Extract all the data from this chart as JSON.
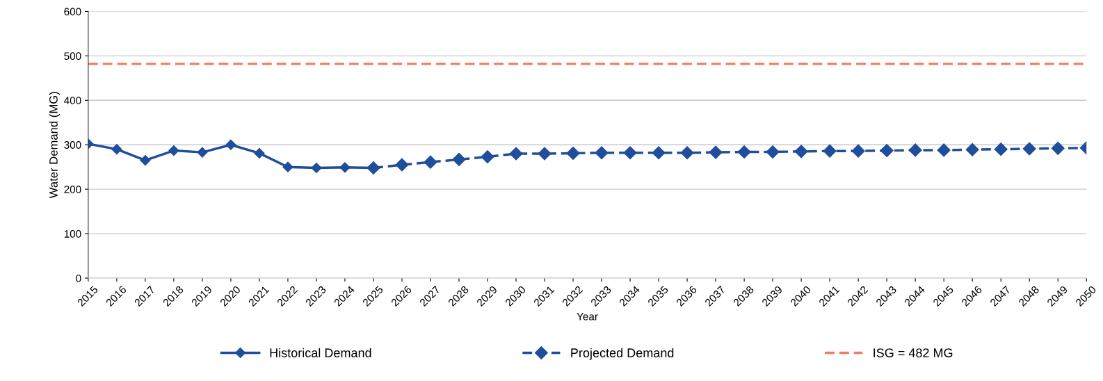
{
  "chart_data": {
    "type": "line",
    "xlabel": "Year",
    "ylabel": "Water Demand (MG)",
    "categories": [
      "2015",
      "2016",
      "2017",
      "2018",
      "2019",
      "2020",
      "2021",
      "2022",
      "2023",
      "2024",
      "2025",
      "2026",
      "2027",
      "2028",
      "2029",
      "2030",
      "2031",
      "2032",
      "2033",
      "2034",
      "2035",
      "2036",
      "2037",
      "2038",
      "2039",
      "2040",
      "2041",
      "2042",
      "2043",
      "2044",
      "2045",
      "2046",
      "2047",
      "2048",
      "2049",
      "2050"
    ],
    "series": [
      {
        "name": "Historical Demand",
        "color": "#1f4e9c",
        "marker": "diamond",
        "line_style": "solid",
        "values": [
          302,
          290,
          265,
          287,
          283,
          300,
          281,
          250,
          248,
          249,
          248,
          null,
          null,
          null,
          null,
          null,
          null,
          null,
          null,
          null,
          null,
          null,
          null,
          null,
          null,
          null,
          null,
          null,
          null,
          null,
          null,
          null,
          null,
          null,
          null,
          null
        ]
      },
      {
        "name": "Projected Demand",
        "color": "#1f4e9c",
        "marker": "diamond",
        "line_style": "dashed",
        "values": [
          null,
          null,
          null,
          null,
          null,
          null,
          null,
          null,
          null,
          null,
          248,
          255,
          261,
          267,
          273,
          280,
          280,
          281,
          282,
          282,
          282,
          282,
          283,
          284,
          284,
          285,
          286,
          286,
          287,
          288,
          288,
          289,
          290,
          291,
          292,
          293
        ]
      }
    ],
    "ref_lines": [
      {
        "axis": "y",
        "value": 482,
        "label": "ISG = 482 MG",
        "color": "#f07f5f",
        "line_style": "dashed"
      }
    ],
    "ylim": [
      0,
      600
    ],
    "yticks": [
      0,
      100,
      200,
      300,
      400,
      500,
      600
    ],
    "grid": "y",
    "legend": "bottom"
  }
}
